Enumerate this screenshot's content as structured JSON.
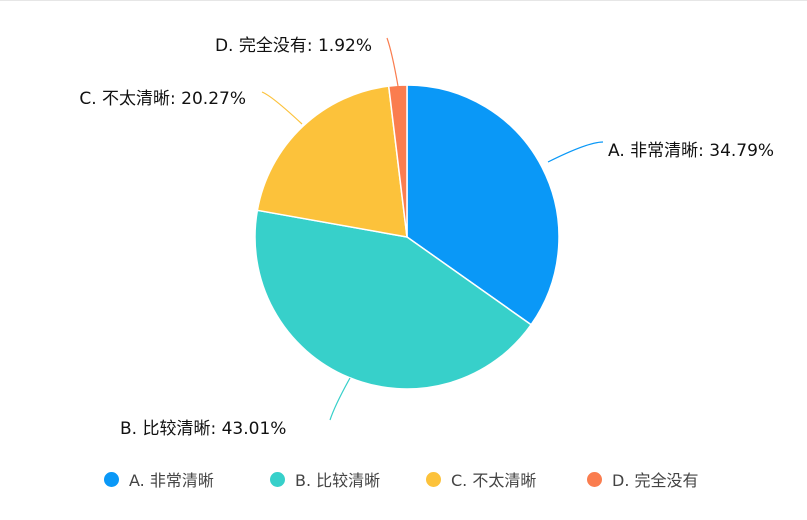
{
  "chart_data": {
    "type": "pie",
    "categories": [
      "A. 非常清晰",
      "B. 比较清晰",
      "C. 不太清晰",
      "D. 完全没有"
    ],
    "values": [
      34.79,
      43.01,
      20.27,
      1.92
    ],
    "value_unit": "%",
    "colors": [
      "#0a98f7",
      "#37d0ca",
      "#fcc23b",
      "#fa7d4f"
    ],
    "slice_labels": [
      "A. 非常清晰: 34.79%",
      "B. 比较清晰: 43.01%",
      "C. 不太清晰: 20.27%",
      "D. 完全没有: 1.92%"
    ],
    "legend": {
      "placement": "bottom",
      "items": [
        "A. 非常清晰",
        "B. 比较清晰",
        "C. 不太清晰",
        "D. 完全没有"
      ]
    }
  }
}
